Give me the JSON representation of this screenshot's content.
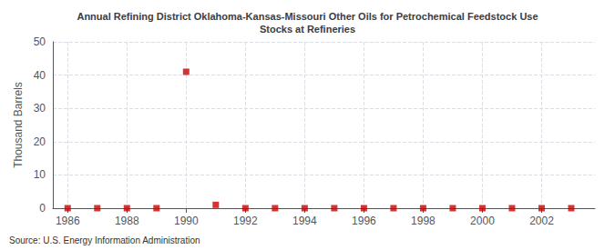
{
  "chart_data": {
    "type": "scatter",
    "title": "Annual Refining District Oklahoma-Kansas-Missouri Other Oils for Petrochemical Feedstock Use\nStocks at Refineries",
    "ylabel": "Thousand Barrels",
    "source": "Source: U.S. Energy Information Administration",
    "x": [
      1986,
      1987,
      1988,
      1989,
      1990,
      1991,
      1992,
      1993,
      1994,
      1995,
      1996,
      1997,
      1998,
      1999,
      2000,
      2001,
      2002,
      2003
    ],
    "values": [
      0,
      0,
      0,
      0,
      41,
      1,
      0,
      0,
      0,
      0,
      0,
      0,
      0,
      0,
      0,
      0,
      0,
      0
    ],
    "color": "#cc0000",
    "marker": "square",
    "xlim": [
      1985.5,
      2003.8
    ],
    "ylim": [
      0,
      50
    ],
    "yticks": [
      0,
      10,
      20,
      30,
      40,
      50
    ],
    "xticks": [
      1986,
      1988,
      1990,
      1992,
      1994,
      1996,
      1998,
      2000,
      2002
    ],
    "grid": true
  }
}
